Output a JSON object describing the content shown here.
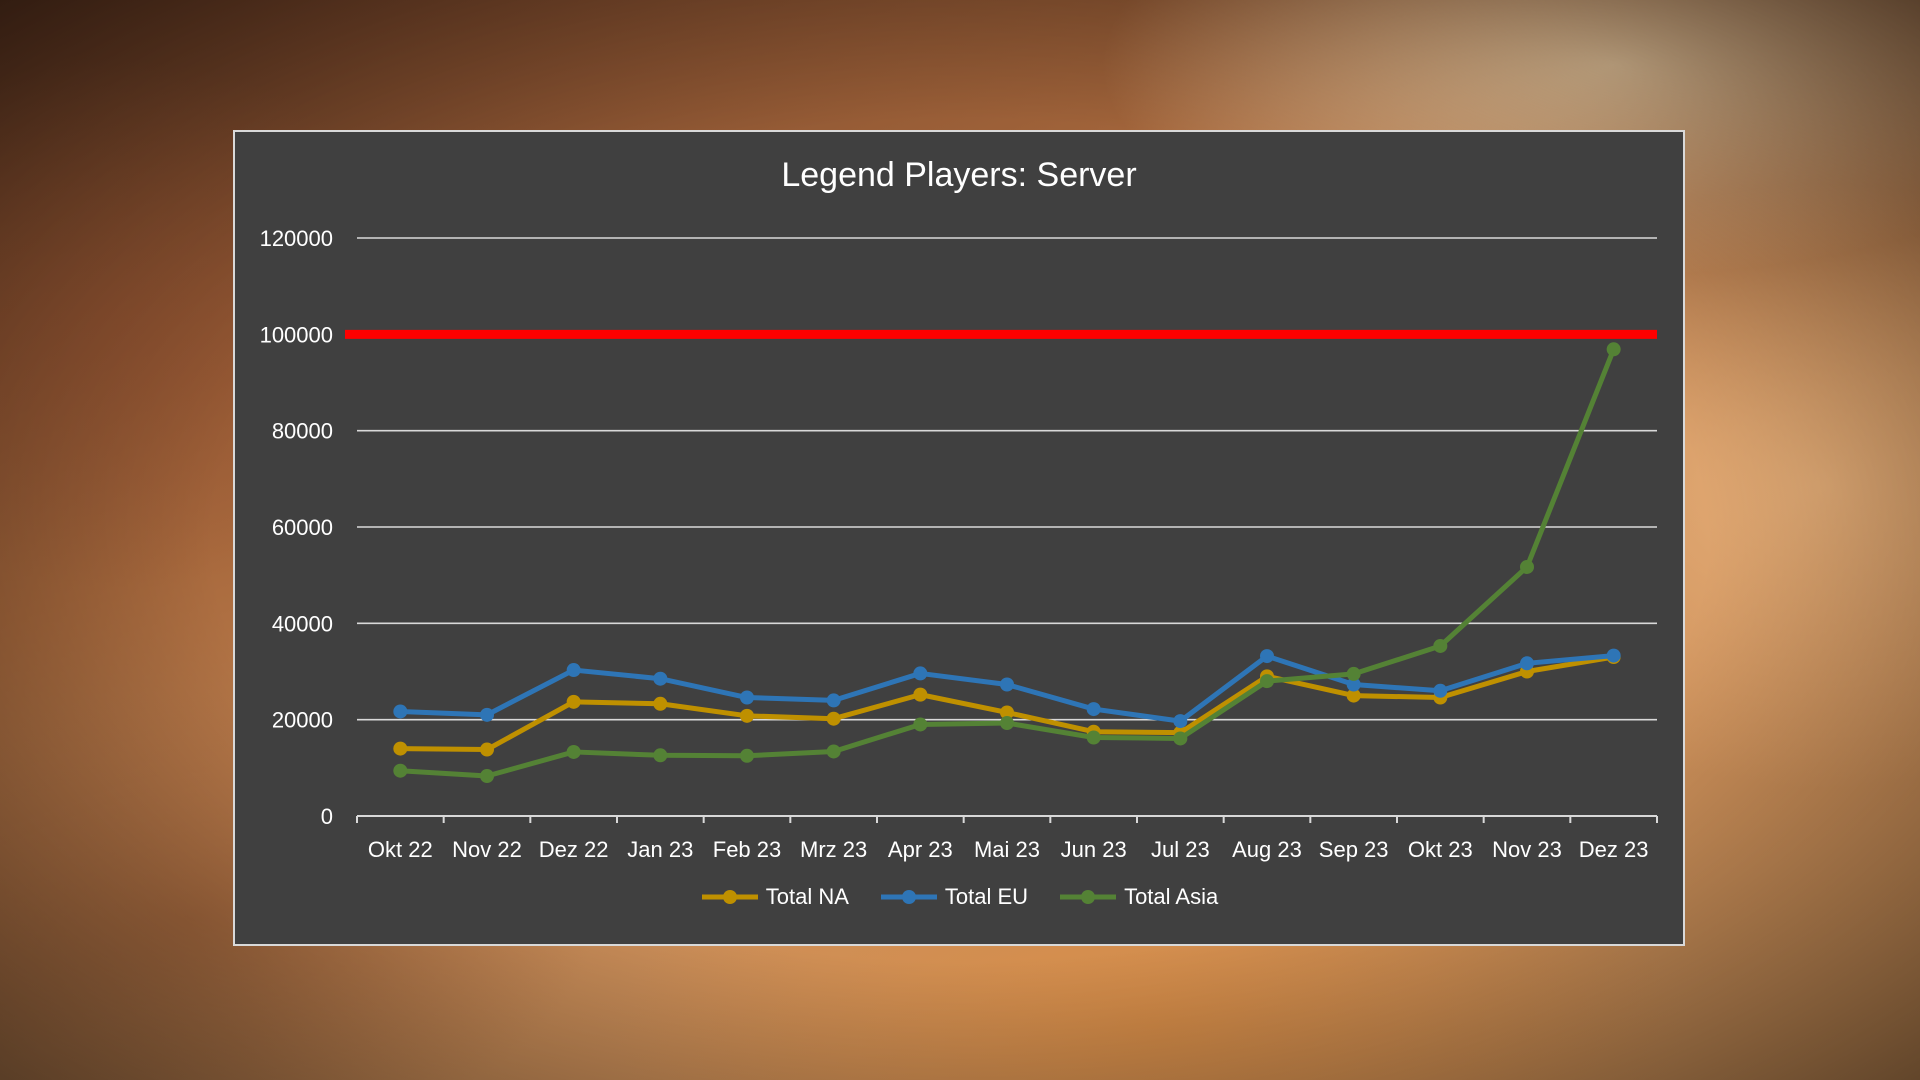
{
  "chart_data": {
    "type": "line",
    "title": "Legend Players: Server",
    "xlabel": "",
    "ylabel": "",
    "ylim": [
      0,
      120000
    ],
    "yticks": [
      0,
      20000,
      40000,
      60000,
      80000,
      100000,
      120000
    ],
    "grid": true,
    "legend": "bottom",
    "categories": [
      "Okt 22",
      "Nov 22",
      "Dez 22",
      "Jan 23",
      "Feb 23",
      "Mrz 23",
      "Apr 23",
      "Mai 23",
      "Jun 23",
      "Jul 23",
      "Aug 23",
      "Sep 23",
      "Okt 23",
      "Nov 23",
      "Dez 23"
    ],
    "series": [
      {
        "name": "Total NA",
        "color": "#bf9000",
        "values": [
          14000,
          13800,
          23700,
          23300,
          20800,
          20200,
          25200,
          21500,
          17500,
          17300,
          29000,
          25000,
          24600,
          30000,
          33000
        ]
      },
      {
        "name": "Total EU",
        "color": "#2e75b6",
        "values": [
          21700,
          21000,
          30300,
          28500,
          24600,
          24000,
          29600,
          27300,
          22200,
          19700,
          33200,
          27300,
          26000,
          31700,
          33300
        ]
      },
      {
        "name": "Total Asia",
        "color": "#548235",
        "values": [
          9400,
          8300,
          13300,
          12600,
          12500,
          13400,
          19000,
          19300,
          16300,
          16100,
          28000,
          29500,
          35300,
          51700,
          96900
        ]
      }
    ],
    "reference_line": {
      "value": 100000,
      "color": "#ff0000"
    },
    "colors": {
      "plot_background": "#404040",
      "gridline": "#d9d9d9",
      "text": "#ffffff"
    }
  }
}
